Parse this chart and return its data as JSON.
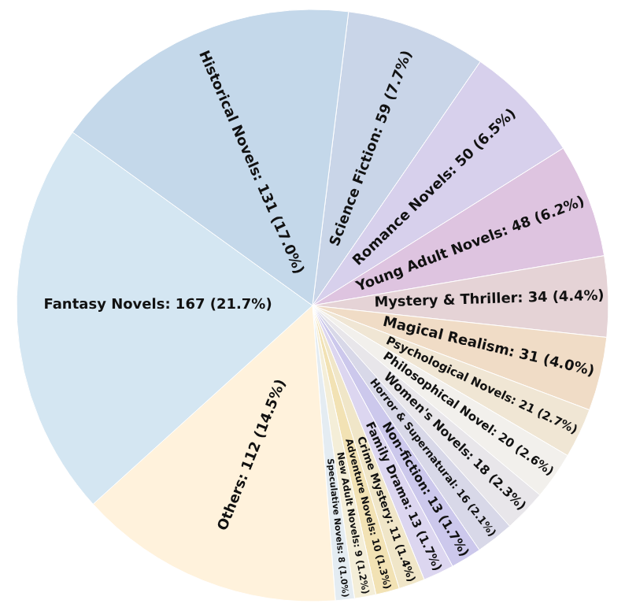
{
  "chart_data": {
    "type": "pie",
    "categories": [
      "Science Fiction",
      "Romance Novels",
      "Young Adult Novels",
      "Mystery & Thriller",
      "Magical Realism",
      "Psychological Novels",
      "Philosophical Novel",
      "Women's Novels",
      "Horror & Supernatural",
      "Non-fiction",
      "Family Drama",
      "Crime Mystery",
      "Adventure Novels",
      "New Adult Novels",
      "Speculative Novels",
      "Others",
      "Fantasy Novels",
      "Historical Novels"
    ],
    "values": [
      59,
      50,
      48,
      34,
      31,
      21,
      20,
      18,
      16,
      13,
      13,
      11,
      10,
      9,
      8,
      112,
      167,
      131
    ],
    "value_labels": [
      "59 (7.7%)",
      "50 (6.5%)",
      "48 (6.2%)",
      "34 (4.4%)",
      "31 (4.0%)",
      "21 (2.7%)",
      "20 (2.6%)",
      "18 (2.3%)",
      "16 (2.1%)",
      "13 (1.7%)",
      "13 (1.7%)",
      "11 (1.4%)",
      "10 (1.3%)",
      "9 (1.2%)",
      "8 (1.0%)",
      "112 (14.5%)",
      "167 (21.7%)",
      "131 (17.0%)"
    ],
    "colors": [
      "#c9d5e8",
      "#d7d0ec",
      "#dec4e0",
      "#e5d3d6",
      "#f0dcc6",
      "#f0e6d4",
      "#f2f0ec",
      "#e8e6ea",
      "#d8d8e8",
      "#ccc8ec",
      "#dcd6f0",
      "#f0e6c8",
      "#f2e2b4",
      "#f4eed8",
      "#e4ecf2",
      "#fff2dc",
      "#d4e6f2",
      "#c4d8ea"
    ],
    "legend": false
  }
}
